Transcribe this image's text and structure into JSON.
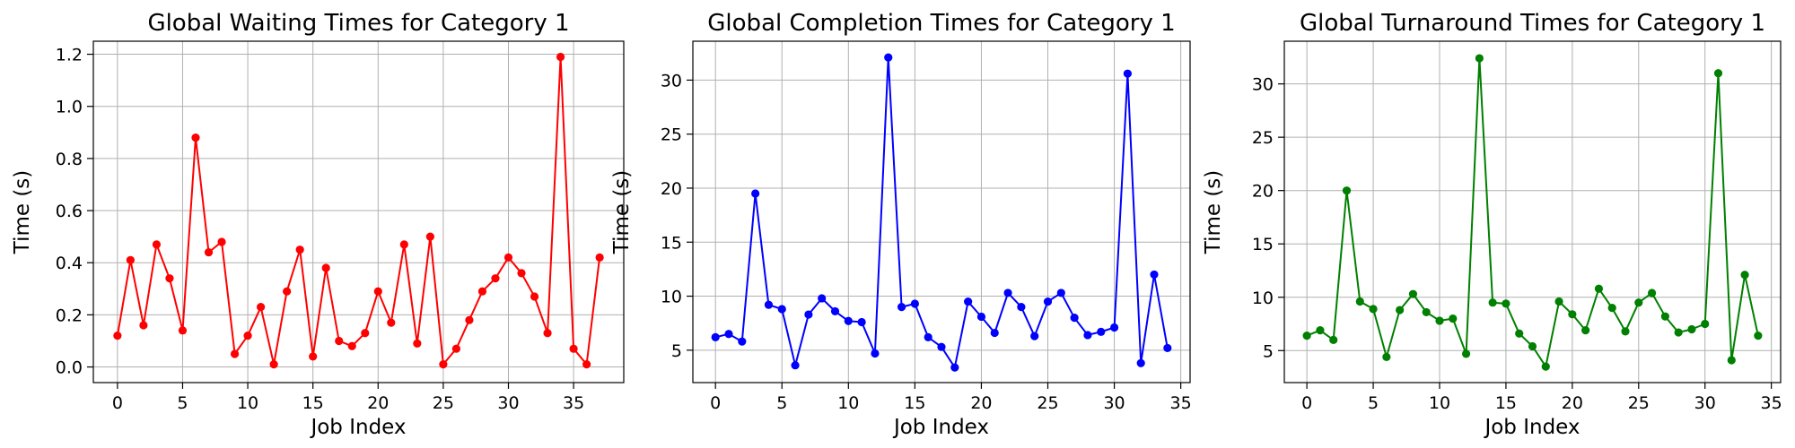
{
  "chart_data": [
    {
      "type": "line",
      "title": "Global Waiting Times for Category 1",
      "xlabel": "Job Index",
      "ylabel": "Time (s)",
      "xlim": [
        -1.85,
        38.85
      ],
      "ylim": [
        -0.06,
        1.25
      ],
      "xticks": [
        0,
        5,
        10,
        15,
        20,
        25,
        30,
        35
      ],
      "yticks": [
        0.0,
        0.2,
        0.4,
        0.6,
        0.8,
        1.0,
        1.2
      ],
      "ytick_labels": [
        "0.0",
        "0.2",
        "0.4",
        "0.6",
        "0.8",
        "1.0",
        "1.2"
      ],
      "grid": true,
      "series": [
        {
          "color": "#ff0000",
          "marker": "circle",
          "x": [
            0,
            1,
            2,
            3,
            4,
            5,
            6,
            7,
            8,
            9,
            10,
            11,
            12,
            13,
            14,
            15,
            16,
            17,
            18,
            19,
            20,
            21,
            22,
            23,
            24,
            25,
            26,
            27,
            28,
            29,
            30,
            31,
            32,
            33,
            34,
            35,
            36,
            37
          ],
          "values": [
            0.12,
            0.41,
            0.16,
            0.47,
            0.34,
            0.14,
            0.88,
            0.44,
            0.48,
            0.05,
            0.12,
            0.23,
            0.01,
            0.29,
            0.45,
            0.04,
            0.38,
            0.1,
            0.08,
            0.13,
            0.29,
            0.17,
            0.47,
            0.09,
            0.5,
            0.01,
            0.07,
            0.18,
            0.29,
            0.34,
            0.42,
            0.36,
            0.27,
            0.13,
            1.19,
            0.07,
            0.01,
            0.42
          ]
        }
      ]
    },
    {
      "type": "line",
      "title": "Global Completion Times for Category 1",
      "xlabel": "Job Index",
      "ylabel": "Time (s)",
      "xlim": [
        -1.7,
        35.7
      ],
      "ylim": [
        2.0,
        33.6
      ],
      "xticks": [
        0,
        5,
        10,
        15,
        20,
        25,
        30,
        35
      ],
      "yticks": [
        5,
        10,
        15,
        20,
        25,
        30
      ],
      "ytick_labels": [
        "5",
        "10",
        "15",
        "20",
        "25",
        "30"
      ],
      "grid": true,
      "series": [
        {
          "color": "#0000ff",
          "marker": "circle",
          "x": [
            0,
            1,
            2,
            3,
            4,
            5,
            6,
            7,
            8,
            9,
            10,
            11,
            12,
            13,
            14,
            15,
            16,
            17,
            18,
            19,
            20,
            21,
            22,
            23,
            24,
            25,
            26,
            27,
            28,
            29,
            30,
            31,
            32,
            33,
            34
          ],
          "values": [
            6.2,
            6.5,
            5.8,
            19.5,
            9.2,
            8.8,
            3.6,
            8.3,
            9.8,
            8.6,
            7.7,
            7.6,
            4.7,
            32.1,
            9.0,
            9.3,
            6.2,
            5.3,
            3.4,
            9.5,
            8.1,
            6.6,
            10.3,
            9.0,
            6.3,
            9.5,
            10.3,
            8.0,
            6.4,
            6.7,
            7.1,
            30.6,
            3.8,
            12.0,
            5.2
          ]
        }
      ]
    },
    {
      "type": "line",
      "title": "Global Turnaround Times for Category 1",
      "xlabel": "Job Index",
      "ylabel": "Time (s)",
      "xlim": [
        -1.7,
        35.7
      ],
      "ylim": [
        2.0,
        34.0
      ],
      "xticks": [
        0,
        5,
        10,
        15,
        20,
        25,
        30,
        35
      ],
      "yticks": [
        5,
        10,
        15,
        20,
        25,
        30
      ],
      "ytick_labels": [
        "5",
        "10",
        "15",
        "20",
        "25",
        "30"
      ],
      "grid": true,
      "series": [
        {
          "color": "#008000",
          "marker": "circle",
          "x": [
            0,
            1,
            2,
            3,
            4,
            5,
            6,
            7,
            8,
            9,
            10,
            11,
            12,
            13,
            14,
            15,
            16,
            17,
            18,
            19,
            20,
            21,
            22,
            23,
            24,
            25,
            26,
            27,
            28,
            29,
            30,
            31,
            32,
            33,
            34
          ],
          "values": [
            6.4,
            6.9,
            6.0,
            20.0,
            9.6,
            8.9,
            4.4,
            8.8,
            10.3,
            8.6,
            7.8,
            8.0,
            4.7,
            32.4,
            9.5,
            9.4,
            6.6,
            5.4,
            3.5,
            9.6,
            8.4,
            6.9,
            10.8,
            9.0,
            6.8,
            9.5,
            10.4,
            8.2,
            6.7,
            7.0,
            7.5,
            31.0,
            4.1,
            12.1,
            6.4
          ]
        }
      ]
    }
  ]
}
